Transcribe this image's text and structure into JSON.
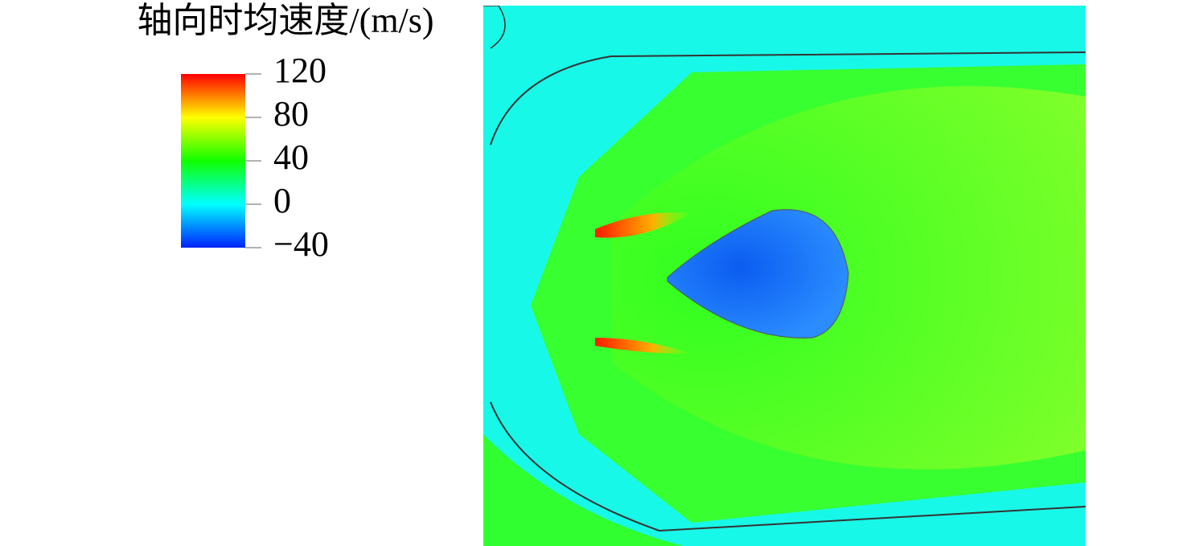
{
  "chart_data": {
    "type": "colorbar",
    "title": "轴向时均速度/(m/s)",
    "clim": [
      -40,
      120
    ],
    "cticks": [
      {
        "value": -40,
        "label": "−40"
      },
      0,
      40,
      80,
      120
    ],
    "colors": [
      "#0022ff",
      "#00ffff",
      "#10ff00",
      "#ffff00",
      "#ff0000"
    ]
  }
}
